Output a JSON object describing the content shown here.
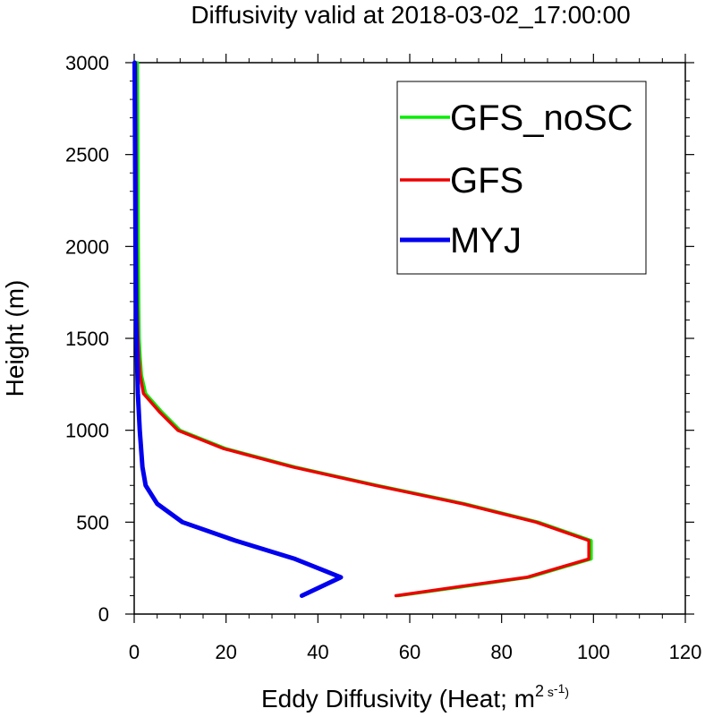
{
  "chart_data": {
    "type": "line",
    "title": "Diffusivity valid at 2018-03-02_17:00:00",
    "xlabel_main": "Eddy Diffusivity (Heat; m",
    "xlabel_sup1": "2",
    "xlabel_mid": " s",
    "xlabel_sup2": "-1",
    "xlabel_end": ")",
    "ylabel": "Height (m)",
    "xlim": [
      0,
      120
    ],
    "ylim": [
      0,
      3000
    ],
    "xticks": [
      0,
      20,
      40,
      60,
      80,
      100,
      120
    ],
    "yticks": [
      0,
      500,
      1000,
      1500,
      2000,
      2500,
      3000
    ],
    "grid": false,
    "legend_position": "top-right",
    "series": [
      {
        "name": "GFS_noSC",
        "color": "#00ee00",
        "points": [
          [
            57.5,
            100
          ],
          [
            72,
            150
          ],
          [
            86,
            200
          ],
          [
            99.5,
            300
          ],
          [
            99.5,
            400
          ],
          [
            88,
            500
          ],
          [
            72,
            600
          ],
          [
            53,
            700
          ],
          [
            35,
            800
          ],
          [
            20,
            900
          ],
          [
            10,
            1000
          ],
          [
            6,
            1100
          ],
          [
            2.5,
            1200
          ],
          [
            1.6,
            1300
          ],
          [
            1.3,
            1400
          ],
          [
            1.1,
            1500
          ],
          [
            1,
            1700
          ],
          [
            0.9,
            2000
          ],
          [
            0.8,
            2500
          ],
          [
            0.7,
            3000
          ]
        ]
      },
      {
        "name": "GFS",
        "color": "#ee0000",
        "points": [
          [
            57,
            100
          ],
          [
            71,
            150
          ],
          [
            85.5,
            200
          ],
          [
            99,
            300
          ],
          [
            99,
            400
          ],
          [
            87.5,
            500
          ],
          [
            71.5,
            600
          ],
          [
            52.5,
            700
          ],
          [
            34.5,
            800
          ],
          [
            19.5,
            900
          ],
          [
            9.5,
            1000
          ],
          [
            5.5,
            1100
          ],
          [
            2,
            1200
          ],
          [
            1.3,
            1300
          ],
          [
            1,
            1400
          ],
          [
            0.8,
            1500
          ],
          [
            0.6,
            1700
          ],
          [
            0.5,
            2000
          ],
          [
            0.4,
            2500
          ],
          [
            0.3,
            3000
          ]
        ]
      },
      {
        "name": "MYJ",
        "color": "#0000ee",
        "points": [
          [
            36.5,
            100
          ],
          [
            45,
            200
          ],
          [
            35,
            300
          ],
          [
            22,
            400
          ],
          [
            10.5,
            500
          ],
          [
            5,
            600
          ],
          [
            2.5,
            700
          ],
          [
            1.8,
            800
          ],
          [
            1.5,
            900
          ],
          [
            1.2,
            1000
          ],
          [
            0.8,
            1200
          ],
          [
            0.6,
            1400
          ],
          [
            0.4,
            1600
          ],
          [
            0.3,
            2000
          ],
          [
            0.2,
            2500
          ],
          [
            0.1,
            3000
          ]
        ]
      }
    ]
  }
}
